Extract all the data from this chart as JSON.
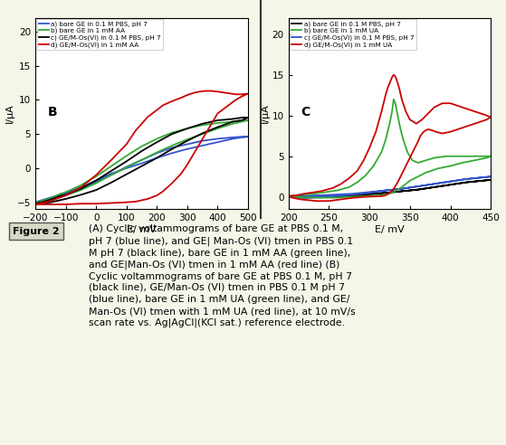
{
  "panel_B": {
    "title": "B",
    "xlabel": "E/ mV",
    "ylabel": "I/μA",
    "xlim": [
      -200,
      500
    ],
    "ylim": [
      -6,
      22
    ],
    "xticks": [
      -200,
      -100,
      0,
      100,
      200,
      300,
      400,
      500
    ],
    "yticks": [
      -5,
      0,
      5,
      10,
      15,
      20
    ],
    "legend": [
      "a) bare GE in 0.1 M PBS, pH 7",
      "b) bare GE in 1 mM AA",
      "c) GE/M-Os(VI) in 0.1 M PBS, pH 7",
      "d) GE/M-Os(VI) in 1 mM AA"
    ],
    "legend_colors": [
      "#3355cc",
      "#33aa33",
      "#000000",
      "#cc0000"
    ],
    "curves": {
      "blue": {
        "color": "#3355cc",
        "x": [
          -200,
          -180,
          -150,
          -120,
          -100,
          -50,
          0,
          50,
          100,
          150,
          200,
          250,
          300,
          350,
          400,
          450,
          480,
          500,
          500,
          480,
          450,
          400,
          350,
          300,
          250,
          200,
          150,
          100,
          50,
          0,
          -50,
          -100,
          -120,
          -150,
          -180,
          -200
        ],
        "y": [
          -5.0,
          -4.8,
          -4.5,
          -4.0,
          -3.8,
          -3.0,
          -2.0,
          -1.0,
          0.2,
          1.2,
          2.2,
          3.0,
          3.5,
          4.0,
          4.3,
          4.5,
          4.6,
          4.6,
          4.6,
          4.5,
          4.3,
          3.8,
          3.3,
          2.8,
          2.2,
          1.5,
          0.7,
          0.0,
          -0.8,
          -1.8,
          -2.8,
          -3.6,
          -3.9,
          -4.3,
          -4.7,
          -5.0
        ]
      },
      "green": {
        "color": "#33aa33",
        "x": [
          -200,
          -180,
          -150,
          -120,
          -100,
          -50,
          0,
          50,
          100,
          150,
          200,
          250,
          300,
          350,
          400,
          450,
          480,
          500,
          500,
          480,
          450,
          400,
          350,
          300,
          250,
          200,
          150,
          100,
          50,
          0,
          -50,
          -100,
          -120,
          -150,
          -180,
          -200
        ],
        "y": [
          -5.1,
          -4.8,
          -4.4,
          -3.8,
          -3.5,
          -2.5,
          -1.2,
          0.3,
          1.8,
          3.2,
          4.3,
          5.2,
          5.8,
          6.3,
          6.6,
          6.8,
          7.0,
          7.0,
          7.0,
          6.8,
          6.5,
          5.8,
          5.0,
          4.2,
          3.3,
          2.3,
          1.2,
          0.1,
          -1.0,
          -2.2,
          -3.2,
          -4.0,
          -4.3,
          -4.7,
          -5.0,
          -5.1
        ]
      },
      "black": {
        "color": "#000000",
        "x": [
          -200,
          -180,
          -150,
          -120,
          -100,
          -50,
          0,
          50,
          100,
          150,
          200,
          250,
          300,
          350,
          400,
          450,
          480,
          500,
          500,
          480,
          450,
          400,
          350,
          300,
          250,
          200,
          150,
          100,
          50,
          0,
          -50,
          -100,
          -120,
          -150,
          -180,
          -200
        ],
        "y": [
          -5.2,
          -5.0,
          -4.6,
          -4.1,
          -3.9,
          -3.0,
          -1.8,
          -0.4,
          1.0,
          2.5,
          3.8,
          5.0,
          5.8,
          6.5,
          7.0,
          7.2,
          7.4,
          7.4,
          7.4,
          7.0,
          6.8,
          6.0,
          5.1,
          4.0,
          2.8,
          1.5,
          0.3,
          -0.9,
          -2.1,
          -3.2,
          -3.9,
          -4.5,
          -4.7,
          -5.0,
          -5.1,
          -5.2
        ]
      },
      "red": {
        "color": "#cc0000",
        "x": [
          -200,
          -180,
          -150,
          -120,
          -100,
          -50,
          0,
          50,
          100,
          130,
          170,
          200,
          220,
          250,
          280,
          300,
          320,
          340,
          360,
          380,
          400,
          430,
          460,
          480,
          500,
          500,
          480,
          460,
          430,
          400,
          380,
          360,
          340,
          320,
          300,
          280,
          250,
          220,
          200,
          170,
          130,
          100,
          50,
          0,
          -50,
          -100,
          -120,
          -150,
          -180,
          -200
        ],
        "y": [
          -5.3,
          -5.1,
          -4.8,
          -4.3,
          -4.0,
          -2.8,
          -1.0,
          1.2,
          3.5,
          5.5,
          7.5,
          8.5,
          9.2,
          9.8,
          10.3,
          10.7,
          11.0,
          11.2,
          11.3,
          11.3,
          11.2,
          11.0,
          10.8,
          10.8,
          10.9,
          10.9,
          10.5,
          10.0,
          9.0,
          8.0,
          6.5,
          5.0,
          3.5,
          2.0,
          0.5,
          -0.8,
          -2.2,
          -3.4,
          -4.0,
          -4.5,
          -4.9,
          -5.0,
          -5.1,
          -5.2,
          -5.2,
          -5.3,
          -5.3,
          -5.3,
          -5.3,
          -5.3
        ]
      }
    }
  },
  "panel_C": {
    "title": "C",
    "xlabel": "E/ mV",
    "ylabel": "I/μA",
    "xlim": [
      200,
      450
    ],
    "ylim": [
      -1.5,
      22
    ],
    "xticks": [
      200,
      250,
      300,
      350,
      400,
      450
    ],
    "yticks": [
      0,
      5,
      10,
      15,
      20
    ],
    "legend": [
      "a) bare GE in 0.1 M PBS, pH 7",
      "b) bare GE in 1 mM UA",
      "c) GE/M-Os(VI) in 0.1 M PBS, pH 7",
      "d) GE/M-Os(VI) in 1 mM UA"
    ],
    "legend_colors": [
      "#000000",
      "#33aa33",
      "#3355cc",
      "#cc0000"
    ],
    "curves": {
      "black": {
        "color": "#000000",
        "x": [
          200,
          220,
          240,
          260,
          280,
          300,
          320,
          340,
          360,
          380,
          400,
          420,
          440,
          450,
          450,
          440,
          420,
          400,
          380,
          360,
          340,
          320,
          300,
          280,
          260,
          240,
          220,
          200
        ],
        "y": [
          0.0,
          0.1,
          0.15,
          0.2,
          0.3,
          0.4,
          0.5,
          0.7,
          0.9,
          1.2,
          1.5,
          1.8,
          2.0,
          2.1,
          2.1,
          2.0,
          1.8,
          1.5,
          1.2,
          0.9,
          0.7,
          0.5,
          0.3,
          0.15,
          0.05,
          -0.05,
          -0.1,
          0.0
        ]
      },
      "blue": {
        "color": "#3355cc",
        "x": [
          200,
          220,
          240,
          260,
          280,
          300,
          320,
          340,
          360,
          380,
          400,
          420,
          440,
          450,
          450,
          440,
          420,
          400,
          380,
          360,
          340,
          320,
          300,
          280,
          260,
          240,
          220,
          200
        ],
        "y": [
          0.0,
          0.1,
          0.2,
          0.3,
          0.4,
          0.6,
          0.8,
          1.0,
          1.3,
          1.6,
          1.9,
          2.2,
          2.4,
          2.5,
          2.5,
          2.4,
          2.2,
          1.9,
          1.6,
          1.3,
          1.0,
          0.8,
          0.5,
          0.3,
          0.1,
          0.0,
          -0.1,
          0.0
        ]
      },
      "green": {
        "color": "#33aa33",
        "x": [
          200,
          210,
          220,
          240,
          260,
          275,
          285,
          295,
          305,
          315,
          320,
          325,
          328,
          330,
          332,
          335,
          338,
          342,
          347,
          353,
          360,
          370,
          380,
          395,
          410,
          430,
          445,
          450,
          450,
          445,
          430,
          415,
          400,
          385,
          370,
          360,
          350,
          345,
          340,
          335,
          330,
          325,
          320,
          315,
          305,
          295,
          285,
          275,
          260,
          240,
          220,
          210,
          200
        ],
        "y": [
          0.1,
          0.2,
          0.3,
          0.5,
          0.8,
          1.2,
          1.8,
          2.6,
          3.8,
          5.5,
          7.0,
          9.0,
          10.5,
          12.0,
          11.5,
          10.0,
          8.5,
          7.0,
          5.5,
          4.5,
          4.2,
          4.5,
          4.8,
          5.0,
          5.0,
          5.0,
          5.0,
          5.0,
          5.0,
          4.8,
          4.5,
          4.2,
          3.8,
          3.5,
          3.0,
          2.5,
          2.0,
          1.6,
          1.2,
          0.9,
          0.6,
          0.4,
          0.3,
          0.2,
          0.15,
          0.1,
          0.05,
          0.0,
          -0.1,
          -0.1,
          -0.05,
          0.0,
          0.1
        ]
      },
      "red": {
        "color": "#cc0000",
        "x": [
          200,
          210,
          220,
          240,
          255,
          265,
          275,
          285,
          293,
          300,
          308,
          315,
          320,
          323,
          326,
          328,
          330,
          332,
          334,
          337,
          340,
          345,
          350,
          358,
          365,
          370,
          375,
          380,
          390,
          400,
          415,
          430,
          445,
          450,
          450,
          445,
          430,
          415,
          400,
          390,
          382,
          377,
          373,
          370,
          367,
          363,
          360,
          355,
          350,
          345,
          340,
          335,
          330,
          325,
          320,
          315,
          305,
          295,
          280,
          265,
          250,
          235,
          215,
          205,
          200
        ],
        "y": [
          0.1,
          0.2,
          0.4,
          0.7,
          1.1,
          1.6,
          2.3,
          3.2,
          4.5,
          6.0,
          8.0,
          10.5,
          12.5,
          13.5,
          14.2,
          14.7,
          15.0,
          14.8,
          14.3,
          13.3,
          12.0,
          10.5,
          9.5,
          9.0,
          9.5,
          10.0,
          10.5,
          11.0,
          11.5,
          11.5,
          11.0,
          10.5,
          10.0,
          9.8,
          9.8,
          9.5,
          9.0,
          8.5,
          8.0,
          7.8,
          8.0,
          8.2,
          8.3,
          8.2,
          8.0,
          7.5,
          6.8,
          5.8,
          4.8,
          3.8,
          2.8,
          1.8,
          1.0,
          0.5,
          0.2,
          0.1,
          0.05,
          0.02,
          -0.1,
          -0.3,
          -0.5,
          -0.5,
          -0.3,
          -0.1,
          0.1
        ]
      }
    }
  },
  "figure_label": "Figure 2",
  "caption": "(A) Cyclic voltammograms of bare GE at PBS 0.1 M, pH 7 (blue line), and GE| Man-Os (VI) tmen in PBS 0.1 M pH 7 (black line), bare GE in 1 mM AA (green line), and GE|Man-Os (VI) tmen in 1 mM AA (red line) (B) Cyclic voltammograms of bare GE at PBS 0.1 M, pH 7 (black line), GE/Man-Os (VI) tmen in PBS 0.1 M pH 7 (blue line), bare GE in 1 mM UA (green line), and GE/ Man-Os (VI) tmen with 1 mM UA (red line), at 10 mV/s scan rate vs. Ag|AgCl|(KCl sat.) reference electrode.",
  "bg_color": "#f5f5e8",
  "plot_bg": "#ffffff",
  "divider_color": "#333333"
}
